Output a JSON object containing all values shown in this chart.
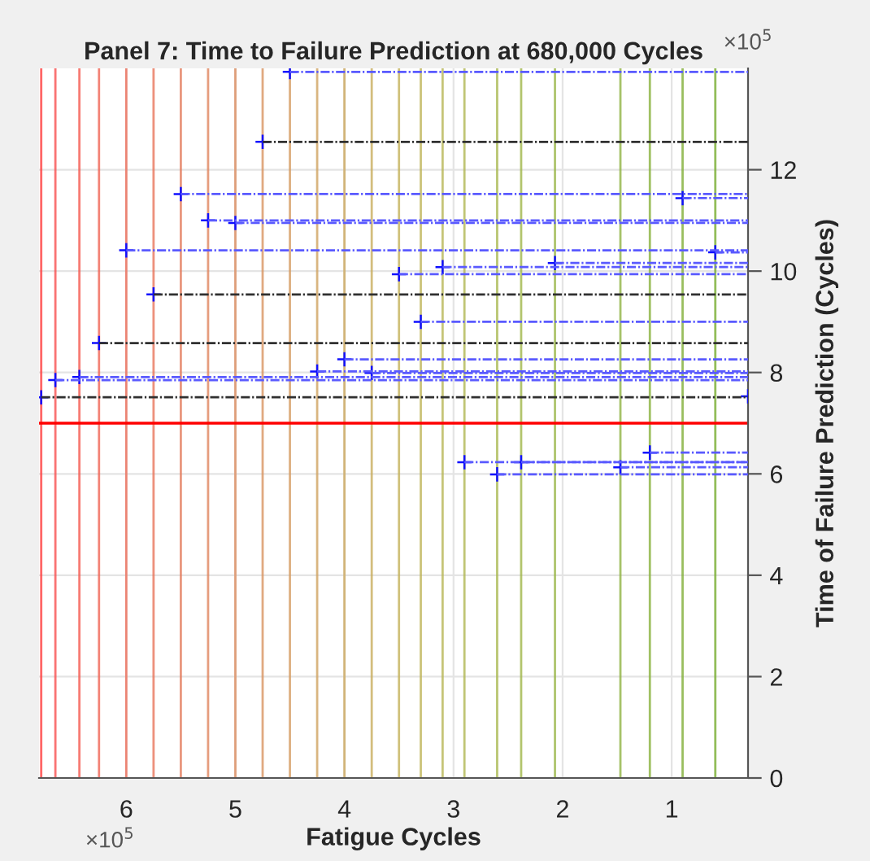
{
  "chart_data": {
    "type": "line",
    "title": "Panel 7: Time to Failure Prediction at 680,000 Cycles",
    "xlabel": "Fatigue Cycles",
    "ylabel": "Time of Failure Prediction (Cycles)",
    "annotations": [
      "×10$^{5}$",
      "×10$^{5}$"
    ],
    "xlim": [
      6.8,
      0.3
    ],
    "xticks": [
      6,
      5,
      4,
      3,
      2,
      1
    ],
    "ylim": [
      0,
      14
    ],
    "yticks": [
      0,
      2,
      4,
      6,
      8,
      10,
      12
    ],
    "grid": true,
    "series": [
      {
        "color": "#5a5aff",
        "line_style": "dashdot",
        "x": [
          4.5,
          0.3
        ],
        "values": [
          13.93,
          13.93
        ]
      },
      {
        "color": "#303030",
        "line_style": "dashdot",
        "x": [
          4.75,
          0.3
        ],
        "values": [
          12.55,
          12.55
        ]
      },
      {
        "color": "#5a5aff",
        "line_style": "dashdot",
        "x": [
          5.5,
          0.3
        ],
        "values": [
          11.52,
          11.52
        ]
      },
      {
        "color": "#5a5aff",
        "line_style": "dashdot",
        "x": [
          5.25,
          0.3
        ],
        "values": [
          11.0,
          11.0
        ]
      },
      {
        "color": "#5a5aff",
        "line_style": "dashdot",
        "x": [
          5.0,
          0.3
        ],
        "values": [
          10.95,
          10.95
        ]
      },
      {
        "color": "#5a5aff",
        "line_style": "dashdot",
        "x": [
          6.0,
          0.3
        ],
        "values": [
          10.41,
          10.41
        ]
      },
      {
        "color": "#5a5aff",
        "line_style": "dashdot",
        "x": [
          3.5,
          0.3
        ],
        "values": [
          9.94,
          9.94
        ]
      },
      {
        "color": "#303030",
        "line_style": "dashdot",
        "x": [
          5.75,
          0.3
        ],
        "values": [
          9.54,
          9.54
        ]
      },
      {
        "color": "#303030",
        "line_style": "dashdot",
        "x": [
          6.25,
          0.3
        ],
        "values": [
          8.58,
          8.58
        ]
      },
      {
        "color": "#5a5aff",
        "line_style": "dashdot",
        "x": [
          4.0,
          0.3
        ],
        "values": [
          8.26,
          8.26
        ]
      },
      {
        "color": "#5a5aff",
        "line_style": "dashdot",
        "x": [
          4.25,
          0.3
        ],
        "values": [
          8.02,
          8.02
        ]
      },
      {
        "color": "#5a5aff",
        "line_style": "dashdot",
        "x": [
          3.75,
          0.3
        ],
        "values": [
          7.99,
          7.99
        ]
      },
      {
        "color": "#5a5aff",
        "line_style": "dashdot",
        "x": [
          6.65,
          0.3
        ],
        "values": [
          7.85,
          7.85
        ]
      },
      {
        "color": "#5a5aff",
        "line_style": "dashdot",
        "x": [
          6.43,
          0.3
        ],
        "values": [
          7.91,
          7.91
        ]
      },
      {
        "color": "#303030",
        "line_style": "dashdot",
        "x": [
          6.78,
          0.3
        ],
        "values": [
          7.51,
          7.51
        ]
      },
      {
        "color": "#5a5aff",
        "line_style": "dashdot",
        "x": [
          0.9,
          0.3
        ],
        "values": [
          11.44,
          11.44
        ]
      },
      {
        "color": "#5a5aff",
        "line_style": "dashdot",
        "x": [
          0.6,
          0.3
        ],
        "values": [
          10.37,
          10.37
        ]
      },
      {
        "color": "#5a5aff",
        "line_style": "dashdot",
        "x": [
          3.1,
          0.3
        ],
        "values": [
          10.08,
          10.08
        ]
      },
      {
        "color": "#5a5aff",
        "line_style": "dashdot",
        "x": [
          2.07,
          0.3
        ],
        "values": [
          10.16,
          10.16
        ]
      },
      {
        "color": "#5a5aff",
        "line_style": "dashdot",
        "x": [
          3.3,
          0.3
        ],
        "values": [
          9.0,
          9.0
        ]
      },
      {
        "color": "#5a5aff",
        "line_style": "dashdot",
        "x": [
          2.9,
          0.3
        ],
        "values": [
          6.23,
          6.23
        ]
      },
      {
        "color": "#5a5aff",
        "line_style": "dashdot",
        "x": [
          2.38,
          0.3
        ],
        "values": [
          6.23,
          6.23
        ]
      },
      {
        "color": "#5a5aff",
        "line_style": "dashdot",
        "x": [
          2.6,
          0.3
        ],
        "values": [
          5.99,
          5.99
        ]
      },
      {
        "color": "#5a5aff",
        "line_style": "dashdot",
        "x": [
          1.47,
          0.3
        ],
        "values": [
          6.13,
          6.13
        ]
      },
      {
        "color": "#5a5aff",
        "line_style": "dashdot",
        "x": [
          1.2,
          0.3
        ],
        "values": [
          6.42,
          6.42
        ]
      },
      {
        "type": "scatter",
        "color": "#1010ff",
        "marker": "cross",
        "x": [
          4.5,
          4.75,
          5.5,
          5.25,
          5.0,
          6.0,
          3.5,
          5.75,
          6.25,
          4.0,
          4.25,
          3.75,
          6.65,
          6.43,
          6.78,
          0.9,
          0.6,
          3.1,
          2.07,
          3.3,
          0.3,
          2.9,
          2.38,
          2.6,
          1.47,
          1.2
        ],
        "values": [
          13.93,
          12.55,
          11.52,
          11.0,
          10.95,
          10.41,
          9.94,
          9.54,
          8.58,
          8.26,
          8.02,
          7.99,
          7.85,
          7.91,
          7.51,
          11.44,
          10.37,
          10.08,
          10.16,
          9.0,
          7.53,
          6.23,
          6.23,
          5.99,
          6.13,
          6.42
        ]
      }
    ],
    "ref_lines": [
      {
        "axis": "y",
        "value": 7.0,
        "color": "#ff0000",
        "line_style": "solid"
      },
      {
        "axis": "x",
        "value": 6.78,
        "color": "#ff4040"
      },
      {
        "axis": "x",
        "value": 6.65,
        "color": "#f85050"
      },
      {
        "axis": "x",
        "value": 6.43,
        "color": "#f45a50"
      },
      {
        "axis": "x",
        "value": 6.25,
        "color": "#f06455"
      },
      {
        "axis": "x",
        "value": 6.0,
        "color": "#ec6c58"
      },
      {
        "axis": "x",
        "value": 5.75,
        "color": "#e8745a"
      },
      {
        "axis": "x",
        "value": 5.5,
        "color": "#e47c5c"
      },
      {
        "axis": "x",
        "value": 5.25,
        "color": "#e0845e"
      },
      {
        "axis": "x",
        "value": 5.0,
        "color": "#dc8c5f"
      },
      {
        "axis": "x",
        "value": 4.75,
        "color": "#d89460"
      },
      {
        "axis": "x",
        "value": 4.5,
        "color": "#d49b60"
      },
      {
        "axis": "x",
        "value": 4.25,
        "color": "#d0a260"
      },
      {
        "axis": "x",
        "value": 4.0,
        "color": "#cca85e"
      },
      {
        "axis": "x",
        "value": 3.75,
        "color": "#c8ad5c"
      },
      {
        "axis": "x",
        "value": 3.5,
        "color": "#c4b25a"
      },
      {
        "axis": "x",
        "value": 3.3,
        "color": "#beb458"
      },
      {
        "axis": "x",
        "value": 3.1,
        "color": "#b8b656"
      },
      {
        "axis": "x",
        "value": 2.9,
        "color": "#b0b752"
      },
      {
        "axis": "x",
        "value": 2.6,
        "color": "#a8b74e"
      },
      {
        "axis": "x",
        "value": 2.38,
        "color": "#a0b64a"
      },
      {
        "axis": "x",
        "value": 2.07,
        "color": "#98b546"
      },
      {
        "axis": "x",
        "value": 1.47,
        "color": "#90b342"
      },
      {
        "axis": "x",
        "value": 1.2,
        "color": "#88b13c"
      },
      {
        "axis": "x",
        "value": 0.9,
        "color": "#80ae36"
      },
      {
        "axis": "x",
        "value": 0.6,
        "color": "#77ac30"
      }
    ]
  }
}
